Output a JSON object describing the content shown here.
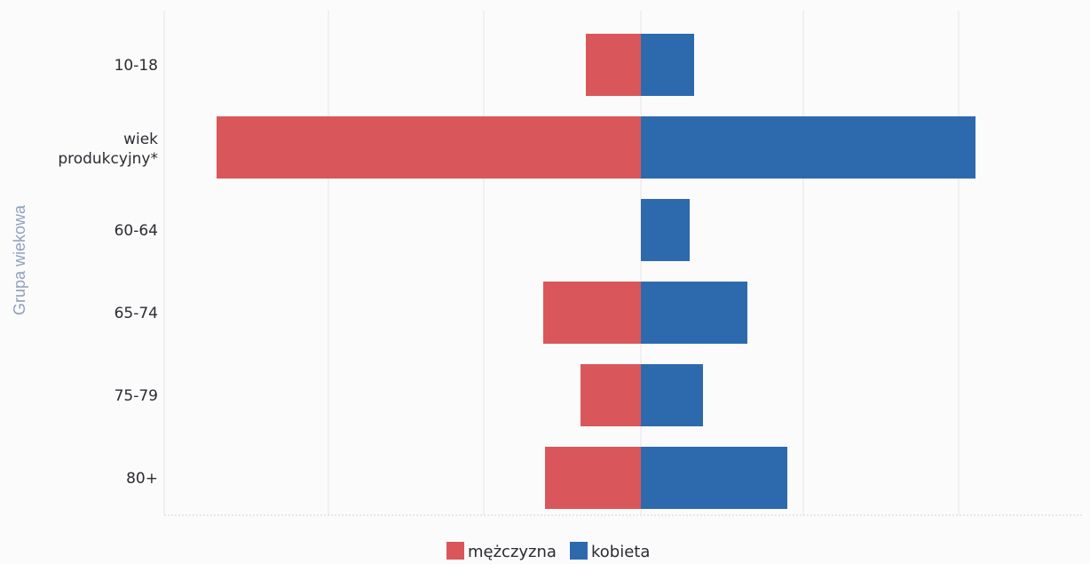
{
  "chart_data": {
    "type": "bar",
    "orientation": "horizontal",
    "stacked": "diverging",
    "ylabel": "Grupa wiekowa",
    "categories": [
      "10-18",
      "wiek produkcyjny*",
      "60-64",
      "65-74",
      "75-79",
      "80+"
    ],
    "series": [
      {
        "name": "mężczyzna",
        "color": "#d9575b",
        "values": [
          62,
          478,
          0,
          110,
          68,
          108
        ]
      },
      {
        "name": "kobieta",
        "color": "#2d6aad",
        "values": [
          60,
          377,
          55,
          120,
          70,
          165
        ]
      }
    ],
    "legend_position": "bottom",
    "grid": true
  },
  "legend": {
    "items": [
      {
        "label": "mężczyzna",
        "color": "#d9575b"
      },
      {
        "label": "kobieta",
        "color": "#2d6aad"
      }
    ]
  }
}
